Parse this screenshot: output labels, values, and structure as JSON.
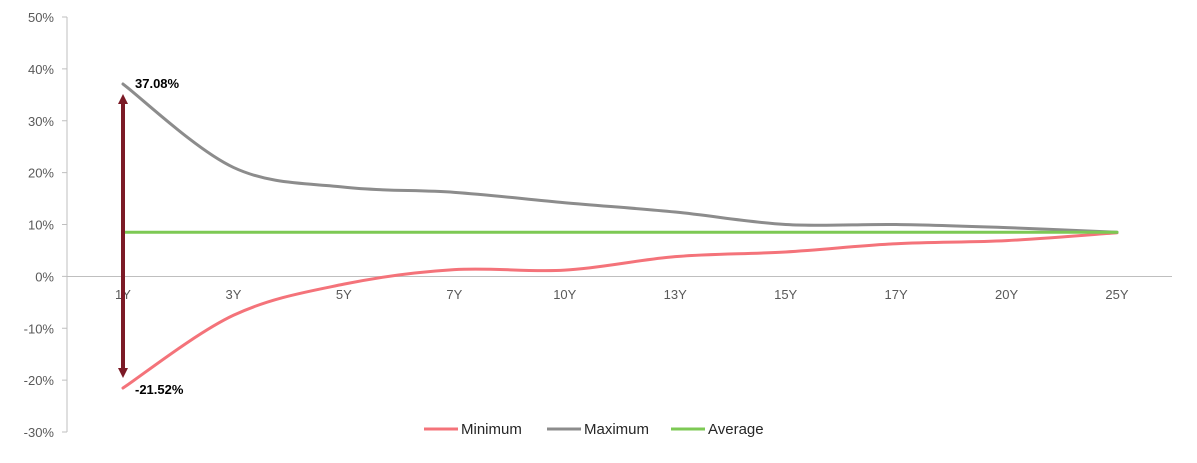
{
  "chart_data": {
    "type": "line",
    "categories": [
      "1Y",
      "3Y",
      "5Y",
      "7Y",
      "10Y",
      "13Y",
      "15Y",
      "17Y",
      "20Y",
      "25Y"
    ],
    "series": [
      {
        "name": "Minimum",
        "color": "#f4737a",
        "values": [
          -21.52,
          -7.5,
          -1.5,
          1.3,
          1.2,
          3.8,
          4.7,
          6.3,
          6.9,
          8.4
        ]
      },
      {
        "name": "Maximum",
        "color": "#8c8c8c",
        "values": [
          37.08,
          21.0,
          17.2,
          16.2,
          14.2,
          12.4,
          10.0,
          10.0,
          9.4,
          8.5
        ]
      },
      {
        "name": "Average",
        "color": "#7dc954",
        "values": [
          8.5,
          8.5,
          8.5,
          8.5,
          8.5,
          8.5,
          8.5,
          8.5,
          8.5,
          8.5
        ]
      }
    ],
    "yticks": [
      "50%",
      "40%",
      "30%",
      "20%",
      "10%",
      "0%",
      "-10%",
      "-20%",
      "-30%"
    ],
    "ylim": [
      -30,
      50
    ],
    "annotations": {
      "max_label": "37.08%",
      "min_label": "-21.52%"
    },
    "range_arrow_color": "#7b1a26",
    "legend_position": "bottom",
    "grid": false
  }
}
